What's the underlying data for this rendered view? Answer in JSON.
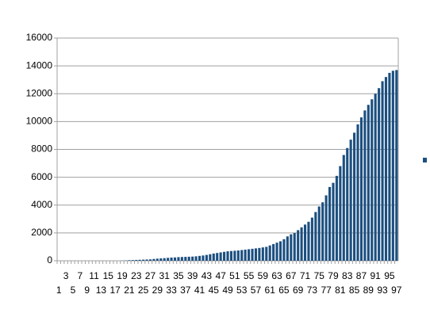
{
  "chart_data": {
    "type": "bar",
    "categories": [
      "1",
      null,
      "3",
      null,
      "5",
      null,
      "7",
      null,
      "9",
      null,
      "11",
      null,
      "13",
      null,
      "15",
      null,
      "17",
      null,
      "19",
      null,
      "21",
      null,
      "23",
      null,
      "25",
      null,
      "27",
      null,
      "29",
      null,
      "31",
      null,
      "33",
      null,
      "35",
      null,
      "37",
      null,
      "39",
      null,
      "41",
      null,
      "43",
      null,
      "45",
      null,
      "47",
      null,
      "49",
      null,
      "51",
      null,
      "53",
      null,
      "55",
      null,
      "57",
      null,
      "59",
      null,
      "61",
      null,
      "63",
      null,
      "65",
      null,
      "67",
      null,
      "69",
      null,
      "71",
      null,
      "73",
      null,
      "75",
      null,
      "77",
      null,
      "79",
      null,
      "81",
      null,
      "83",
      null,
      "85",
      null,
      "87",
      null,
      "89",
      null,
      "91",
      null,
      "93",
      null,
      "95",
      null,
      "97"
    ],
    "values": [
      0,
      0,
      0,
      0,
      0,
      0,
      0,
      0,
      0,
      0,
      0,
      0,
      0,
      0,
      0,
      0,
      0,
      0,
      10,
      20,
      40,
      50,
      60,
      70,
      80,
      90,
      100,
      130,
      150,
      170,
      190,
      210,
      230,
      240,
      260,
      270,
      280,
      290,
      300,
      320,
      350,
      380,
      420,
      470,
      520,
      560,
      600,
      640,
      680,
      700,
      720,
      740,
      770,
      800,
      830,
      860,
      890,
      920,
      960,
      1000,
      1100,
      1200,
      1300,
      1400,
      1550,
      1750,
      1900,
      2000,
      2200,
      2400,
      2600,
      2800,
      3100,
      3500,
      3900,
      4200,
      4700,
      5300,
      5600,
      6100,
      6800,
      7600,
      8100,
      8700,
      9200,
      9800,
      10300,
      10800,
      11200,
      11600,
      12000,
      12400,
      12900,
      13200,
      13500,
      13650,
      13700
    ],
    "color": "#1c4f80",
    "ylim": [
      0,
      16000
    ],
    "yticks": [
      0,
      2000,
      4000,
      6000,
      8000,
      10000,
      12000,
      14000,
      16000
    ],
    "grid": true
  }
}
